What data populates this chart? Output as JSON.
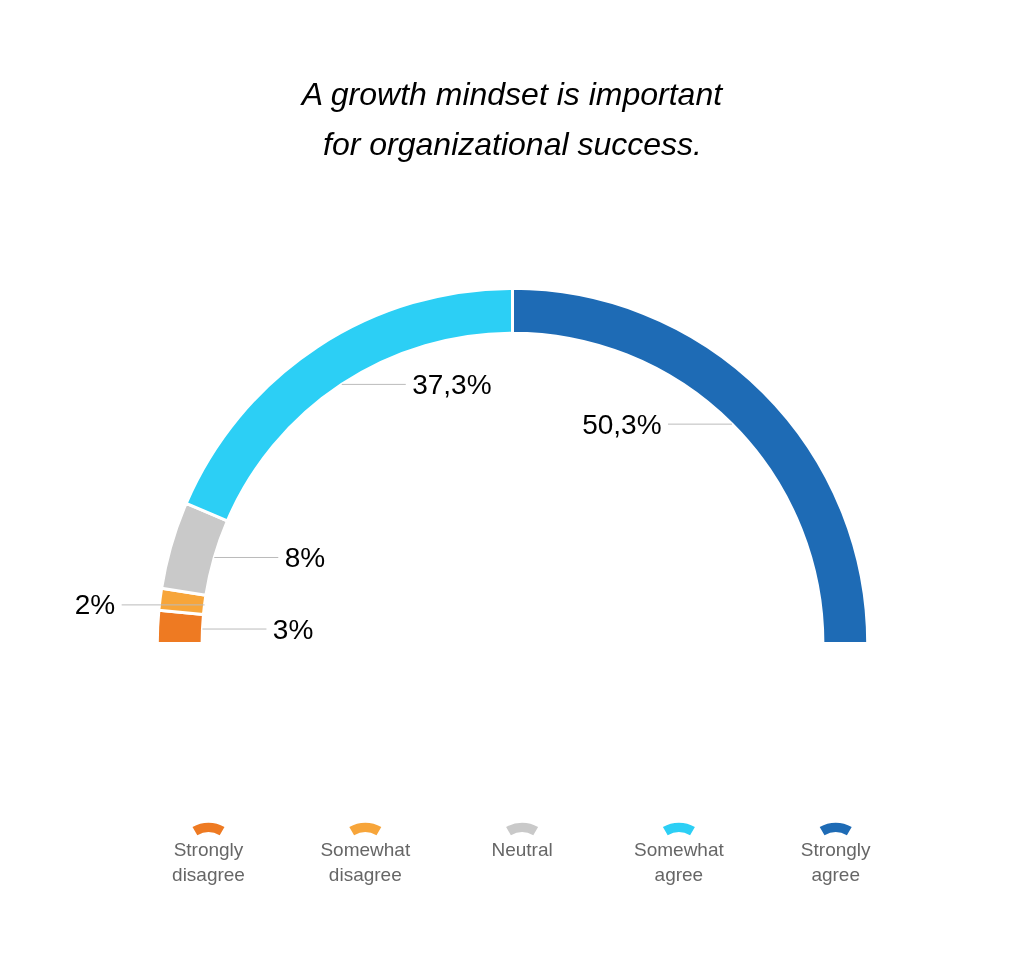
{
  "chart_data": {
    "type": "donut",
    "title": "A growth mindset is important for organizational success.",
    "categories": [
      "Strongly disagree",
      "Somewhat disagree",
      "Neutral",
      "Somewhat agree",
      "Strongly agree"
    ],
    "values": [
      3,
      2,
      8,
      37.3,
      50.3
    ],
    "value_labels": [
      "3%",
      "2%",
      "8%",
      "37,3%",
      "50,3%"
    ],
    "colors": [
      "#ee7a22",
      "#f7a53a",
      "#c9c9c9",
      "#2ccff5",
      "#1e6bb5"
    ],
    "legend": "bottom"
  }
}
